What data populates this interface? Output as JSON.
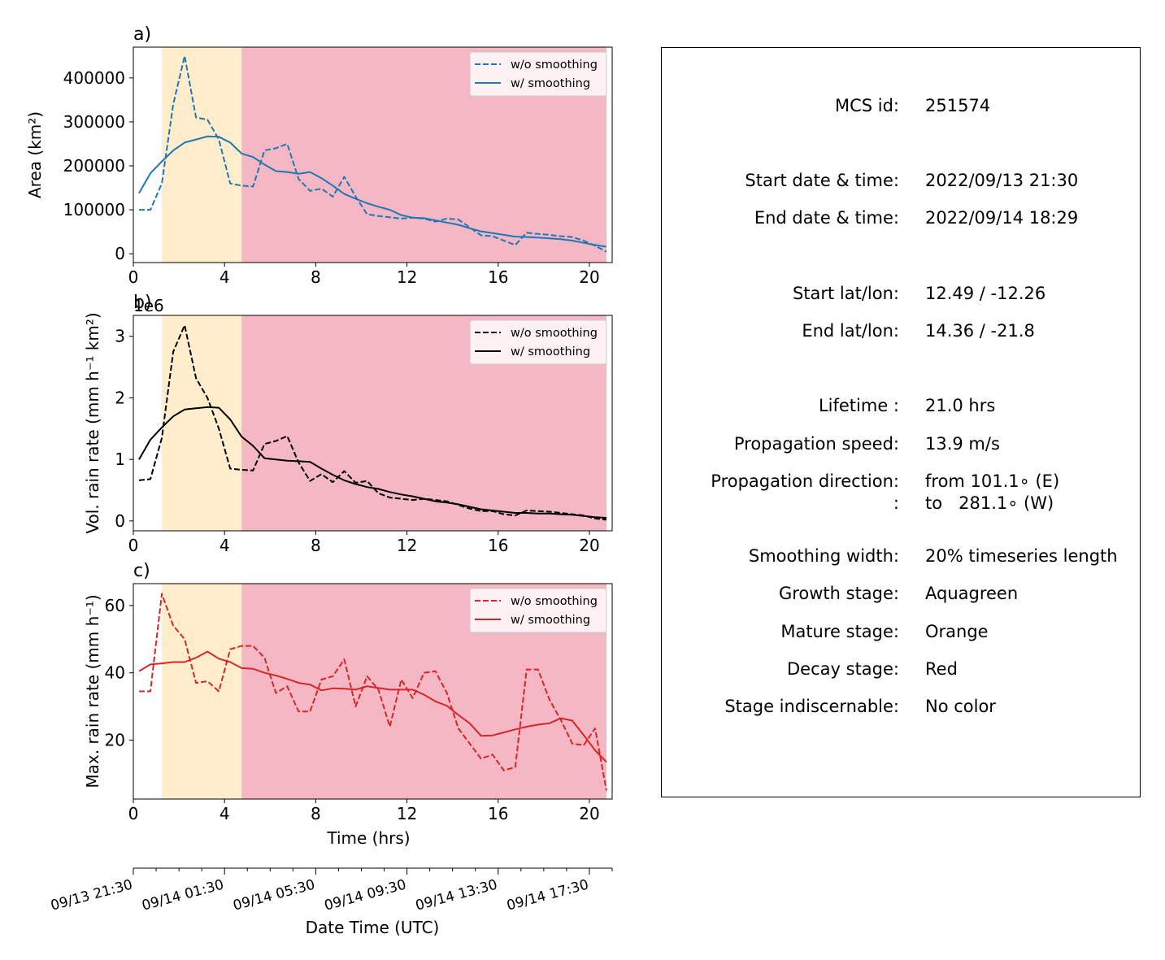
{
  "figure": {
    "date_axis": {
      "label": "Date Time (UTC)",
      "tick_labels": [
        "09/13 21:30",
        "09/14 01:30",
        "09/14 05:30",
        "09/14 09:30",
        "09/14 13:30",
        "09/14 17:30"
      ],
      "tick_hours": [
        0,
        4,
        8,
        12,
        16,
        20
      ],
      "minor_tick_hours": [
        1,
        2,
        3,
        5,
        6,
        7,
        9,
        10,
        11,
        13,
        14,
        15,
        17,
        18,
        19,
        21
      ]
    },
    "info": {
      "rows": [
        {
          "label": "MCS id:",
          "value": "251574"
        },
        {
          "label": "Start date & time:",
          "value": "2022/09/13 21:30"
        },
        {
          "label": "End date & time:",
          "value": "2022/09/14 18:29"
        },
        {
          "label": "Start lat/lon:",
          "value": "12.49 / -12.26"
        },
        {
          "label": "End lat/lon:",
          "value": "14.36 / -21.8"
        },
        {
          "label": "Lifetime :",
          "value": "21.0 hrs"
        },
        {
          "label": "Propagation speed:",
          "value": "13.9 m/s"
        },
        {
          "label": "Propagation direction:",
          "value": "from 101.1∘ (E)"
        },
        {
          "label": ":",
          "value": "to   281.1∘ (W)"
        },
        {
          "label": "Smoothing width:",
          "value": "20% timeseries length"
        },
        {
          "label": "Growth stage:",
          "value": "Aquagreen"
        },
        {
          "label": "Mature stage:",
          "value": "Orange"
        },
        {
          "label": "Decay stage:",
          "value": "Red"
        },
        {
          "label": "Stage indiscernable:",
          "value": "No color"
        }
      ]
    }
  },
  "chart_data": [
    {
      "type": "line",
      "panel_label": "a)",
      "xlabel": "",
      "ylabel": "Area  (km²)",
      "xlim": [
        0,
        21
      ],
      "ylim": [
        -20000,
        470000
      ],
      "xticks": [
        0,
        4,
        8,
        12,
        16,
        20
      ],
      "yticks": [
        0,
        100000,
        200000,
        300000,
        400000
      ],
      "ytick_labels": [
        "0",
        "100000",
        "200000",
        "300000",
        "400000"
      ],
      "offset_text": "",
      "stages": [
        {
          "start": 1.25,
          "end": 4.75,
          "color": "#ffedcc"
        },
        {
          "start": 4.75,
          "end": 20.75,
          "color": "#f4b7c3"
        }
      ],
      "legend": {
        "position": "top-right",
        "entries": [
          "w/o smoothing",
          "w/ smoothing"
        ]
      },
      "series": [
        {
          "name": "w/o smoothing",
          "style": "dashed",
          "color": "#1f77b4",
          "x": [
            0.25,
            0.75,
            1.25,
            1.75,
            2.25,
            2.75,
            3.25,
            3.75,
            4.25,
            4.75,
            5.25,
            5.75,
            6.25,
            6.75,
            7.25,
            7.75,
            8.25,
            8.75,
            9.25,
            9.75,
            10.25,
            10.75,
            11.25,
            11.75,
            12.25,
            12.75,
            13.25,
            13.75,
            14.25,
            14.75,
            15.25,
            15.75,
            16.25,
            16.75,
            17.25,
            17.75,
            18.25,
            18.75,
            19.25,
            19.75,
            20.25,
            20.75
          ],
          "y": [
            100000,
            100000,
            160000,
            340000,
            450000,
            310000,
            305000,
            260000,
            160000,
            155000,
            153000,
            235000,
            240000,
            250000,
            170000,
            143000,
            148000,
            130000,
            175000,
            130000,
            90000,
            86000,
            83000,
            80000,
            82000,
            80000,
            73000,
            80000,
            78000,
            60000,
            42000,
            40000,
            30000,
            20000,
            48000,
            45000,
            43000,
            40000,
            38000,
            30000,
            18000,
            5000
          ]
        },
        {
          "name": "w/ smoothing",
          "style": "solid",
          "color": "#1f77b4",
          "x": [
            0.25,
            0.75,
            1.25,
            1.75,
            2.25,
            2.75,
            3.25,
            3.75,
            4.25,
            4.75,
            5.25,
            5.75,
            6.25,
            6.75,
            7.25,
            7.75,
            8.25,
            8.75,
            9.25,
            9.75,
            10.25,
            10.75,
            11.25,
            11.75,
            12.25,
            12.75,
            13.25,
            13.75,
            14.25,
            14.75,
            15.25,
            15.75,
            16.25,
            16.75,
            17.25,
            17.75,
            18.25,
            18.75,
            19.25,
            19.75,
            20.25,
            20.75
          ],
          "y": [
            138000,
            183000,
            210000,
            235000,
            253000,
            260000,
            267000,
            266000,
            253000,
            228000,
            220000,
            203000,
            188000,
            186000,
            182000,
            186000,
            172000,
            155000,
            136000,
            125000,
            115000,
            107000,
            100000,
            88000,
            82000,
            81000,
            76000,
            71000,
            66000,
            58000,
            51000,
            47000,
            43000,
            39000,
            38000,
            37000,
            35000,
            33000,
            30000,
            25000,
            20000,
            16000
          ]
        }
      ]
    },
    {
      "type": "line",
      "panel_label": "b)",
      "xlabel": "",
      "ylabel": "Vol. rain rate (mm h⁻¹ km²)",
      "xlim": [
        0,
        21
      ],
      "ylim": [
        -0.16,
        3.34
      ],
      "xticks": [
        0,
        4,
        8,
        12,
        16,
        20
      ],
      "yticks": [
        0,
        1,
        2,
        3
      ],
      "ytick_labels": [
        "0",
        "1",
        "2",
        "3"
      ],
      "offset_text": "1e6",
      "stages": [
        {
          "start": 1.25,
          "end": 4.75,
          "color": "#ffedcc"
        },
        {
          "start": 4.75,
          "end": 20.75,
          "color": "#f4b7c3"
        }
      ],
      "legend": {
        "position": "top-right",
        "entries": [
          "w/o smoothing",
          "w/ smoothing"
        ]
      },
      "series": [
        {
          "name": "w/o smoothing",
          "style": "dashed",
          "color": "#000000",
          "x": [
            0.25,
            0.75,
            1.25,
            1.75,
            2.25,
            2.75,
            3.25,
            3.75,
            4.25,
            4.75,
            5.25,
            5.75,
            6.25,
            6.75,
            7.25,
            7.75,
            8.25,
            8.75,
            9.25,
            9.75,
            10.25,
            10.75,
            11.25,
            11.75,
            12.25,
            12.75,
            13.25,
            13.75,
            14.25,
            14.75,
            15.25,
            15.75,
            16.25,
            16.75,
            17.25,
            17.75,
            18.25,
            18.75,
            19.25,
            19.75,
            20.25,
            20.75
          ],
          "y": [
            0.66,
            0.68,
            1.35,
            2.75,
            3.18,
            2.32,
            2.0,
            1.5,
            0.85,
            0.83,
            0.82,
            1.25,
            1.3,
            1.38,
            0.95,
            0.65,
            0.76,
            0.63,
            0.81,
            0.62,
            0.65,
            0.45,
            0.38,
            0.36,
            0.34,
            0.36,
            0.34,
            0.32,
            0.26,
            0.2,
            0.16,
            0.16,
            0.11,
            0.09,
            0.17,
            0.16,
            0.15,
            0.13,
            0.11,
            0.09,
            0.04,
            0.02
          ]
        },
        {
          "name": "w/ smoothing",
          "style": "solid",
          "color": "#000000",
          "x": [
            0.25,
            0.75,
            1.25,
            1.75,
            2.25,
            2.75,
            3.25,
            3.75,
            4.25,
            4.75,
            5.25,
            5.75,
            6.25,
            6.75,
            7.25,
            7.75,
            8.25,
            8.75,
            9.25,
            9.75,
            10.25,
            10.75,
            11.25,
            11.75,
            12.25,
            12.75,
            13.25,
            13.75,
            14.25,
            14.75,
            15.25,
            15.75,
            16.25,
            16.75,
            17.25,
            17.75,
            18.25,
            18.75,
            19.25,
            19.75,
            20.25,
            20.75
          ],
          "y": [
            1.0,
            1.32,
            1.52,
            1.7,
            1.81,
            1.83,
            1.85,
            1.84,
            1.65,
            1.37,
            1.22,
            1.02,
            1.0,
            0.98,
            0.97,
            0.96,
            0.85,
            0.75,
            0.66,
            0.6,
            0.55,
            0.52,
            0.47,
            0.43,
            0.4,
            0.36,
            0.32,
            0.3,
            0.27,
            0.23,
            0.19,
            0.17,
            0.15,
            0.13,
            0.13,
            0.12,
            0.12,
            0.11,
            0.1,
            0.08,
            0.06,
            0.05
          ]
        }
      ]
    },
    {
      "type": "line",
      "panel_label": "c)",
      "xlabel": "Time (hrs)",
      "ylabel": "Max. rain rate  (mm h⁻¹)",
      "xlim": [
        0,
        21
      ],
      "ylim": [
        2.5,
        66.5
      ],
      "xticks": [
        0,
        4,
        8,
        12,
        16,
        20
      ],
      "yticks": [
        20,
        40,
        60
      ],
      "ytick_labels": [
        "20",
        "40",
        "60"
      ],
      "offset_text": "",
      "stages": [
        {
          "start": 1.25,
          "end": 4.75,
          "color": "#ffedcc"
        },
        {
          "start": 4.75,
          "end": 20.75,
          "color": "#f4b7c3"
        }
      ],
      "legend": {
        "position": "top-right",
        "entries": [
          "w/o smoothing",
          "w/ smoothing"
        ]
      },
      "series": [
        {
          "name": "w/o smoothing",
          "style": "dashed",
          "color": "#d62728",
          "x": [
            0.25,
            0.75,
            1.25,
            1.75,
            2.25,
            2.75,
            3.25,
            3.75,
            4.25,
            4.75,
            5.25,
            5.75,
            6.25,
            6.75,
            7.25,
            7.75,
            8.25,
            8.75,
            9.25,
            9.75,
            10.25,
            10.75,
            11.25,
            11.75,
            12.25,
            12.75,
            13.25,
            13.75,
            14.25,
            14.75,
            15.25,
            15.75,
            16.25,
            16.75,
            17.25,
            17.75,
            18.25,
            18.75,
            19.25,
            19.75,
            20.25,
            20.75
          ],
          "y": [
            34.5,
            34.5,
            63.5,
            54,
            50,
            37,
            37.5,
            34.5,
            47,
            48,
            48,
            44.5,
            34,
            36,
            28.5,
            28.5,
            38,
            39,
            44,
            30,
            39,
            35,
            24,
            38,
            32.5,
            40,
            40.5,
            34,
            23.5,
            19,
            14.5,
            15.7,
            11,
            12,
            41,
            41,
            32,
            26,
            19,
            18.5,
            23.5,
            5
          ]
        },
        {
          "name": "w/ smoothing",
          "style": "solid",
          "color": "#d62728",
          "x": [
            0.25,
            0.75,
            1.25,
            1.75,
            2.25,
            2.75,
            3.25,
            3.75,
            4.25,
            4.75,
            5.25,
            5.75,
            6.25,
            6.75,
            7.25,
            7.75,
            8.25,
            8.75,
            9.25,
            9.75,
            10.25,
            10.75,
            11.25,
            11.75,
            12.25,
            12.75,
            13.25,
            13.75,
            14.25,
            14.75,
            15.25,
            15.75,
            16.25,
            16.75,
            17.25,
            17.75,
            18.25,
            18.75,
            19.25,
            19.75,
            20.25,
            20.75
          ],
          "y": [
            40.5,
            42.5,
            42.8,
            43.2,
            43.2,
            44.5,
            46.3,
            44.2,
            43.2,
            41.4,
            41.2,
            40,
            39.2,
            38.2,
            37,
            36.5,
            34.8,
            35.4,
            35.3,
            35,
            36,
            35.5,
            35,
            35,
            35,
            33.5,
            31.5,
            30.2,
            27.5,
            25,
            21.3,
            21.4,
            22.3,
            23.2,
            24,
            24.6,
            25,
            26.5,
            25.8,
            21.5,
            17,
            13.5
          ]
        }
      ]
    }
  ]
}
